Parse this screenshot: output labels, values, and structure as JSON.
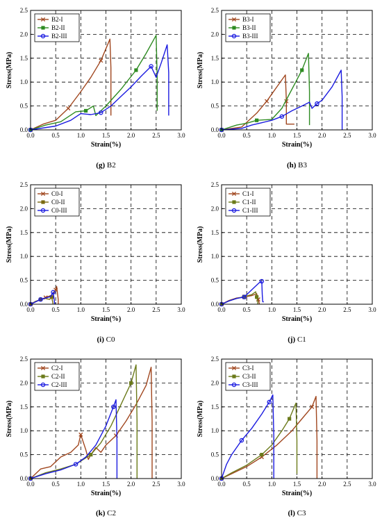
{
  "chart_data": [
    {
      "type": "line",
      "caption_letter": "(g)",
      "caption_name": "B2",
      "xlabel": "Strain(%)",
      "ylabel": "Stress(MPa)",
      "xlim": [
        0,
        3
      ],
      "ylim": [
        0,
        2.5
      ],
      "xticks": [
        "0.0",
        "0.5",
        "1.0",
        "1.5",
        "2.0",
        "2.5",
        "3.0"
      ],
      "yticks": [
        "0.0",
        "0.5",
        "1.0",
        "1.5",
        "2.0",
        "2.5"
      ],
      "grid": "dashed",
      "legend": "top-left",
      "series": [
        {
          "name": "B2-I",
          "color": "#a0461e",
          "marker": "x",
          "x": [
            0,
            0.25,
            0.5,
            0.75,
            1.0,
            1.2,
            1.4,
            1.58,
            1.6,
            1.6
          ],
          "y": [
            0,
            0.12,
            0.2,
            0.45,
            0.8,
            1.1,
            1.45,
            1.9,
            1.3,
            0.3
          ]
        },
        {
          "name": "B2-II",
          "color": "#2e8b22",
          "marker": "s",
          "x": [
            0,
            0.3,
            0.6,
            0.9,
            1.1,
            1.25,
            1.3,
            1.5,
            1.8,
            2.1,
            2.3,
            2.5,
            2.52,
            2.52
          ],
          "y": [
            0,
            0.1,
            0.17,
            0.38,
            0.4,
            0.5,
            0.3,
            0.5,
            0.85,
            1.25,
            1.6,
            1.98,
            1.1,
            0.4
          ]
        },
        {
          "name": "B2-III",
          "color": "#1a1ae0",
          "marker": "o",
          "x": [
            0,
            0.5,
            0.8,
            1.0,
            1.2,
            1.4,
            1.6,
            1.8,
            2.0,
            2.2,
            2.4,
            2.5,
            2.6,
            2.72,
            2.75,
            2.75
          ],
          "y": [
            0,
            0.08,
            0.2,
            0.34,
            0.32,
            0.36,
            0.5,
            0.7,
            0.9,
            1.12,
            1.33,
            1.1,
            1.4,
            1.78,
            1.2,
            0.3
          ]
        }
      ]
    },
    {
      "type": "line",
      "caption_letter": "(h)",
      "caption_name": "B3",
      "xlabel": "Strain(%)",
      "ylabel": "Stress(MPa)",
      "xlim": [
        0,
        3
      ],
      "ylim": [
        0,
        2.5
      ],
      "xticks": [
        "0.0",
        "0.5",
        "1.0",
        "1.5",
        "2.0",
        "2.5",
        "3.0"
      ],
      "yticks": [
        "0.0",
        "0.5",
        "1.0",
        "1.5",
        "2.0",
        "2.5"
      ],
      "grid": "dashed",
      "legend": "top-left",
      "series": [
        {
          "name": "B3-I",
          "color": "#a0461e",
          "marker": "x",
          "x": [
            0,
            0.4,
            0.7,
            0.9,
            1.1,
            1.27,
            1.29,
            1.29,
            1.3,
            1.45
          ],
          "y": [
            0,
            0.06,
            0.35,
            0.6,
            0.9,
            1.15,
            0.6,
            0.12,
            0.12,
            0.12
          ]
        },
        {
          "name": "B3-II",
          "color": "#2e8b22",
          "marker": "s",
          "x": [
            0,
            0.3,
            0.5,
            0.7,
            1.0,
            1.2,
            1.4,
            1.6,
            1.73,
            1.75,
            1.75
          ],
          "y": [
            0,
            0.1,
            0.14,
            0.2,
            0.22,
            0.45,
            0.85,
            1.25,
            1.6,
            0.8,
            0.1
          ]
        },
        {
          "name": "B3-III",
          "color": "#1a1ae0",
          "marker": "o",
          "x": [
            0,
            0.4,
            0.6,
            0.8,
            1.0,
            1.2,
            1.4,
            1.6,
            1.75,
            1.8,
            1.9,
            2.0,
            2.2,
            2.38,
            2.4,
            2.4
          ],
          "y": [
            0,
            0.03,
            0.1,
            0.15,
            0.2,
            0.28,
            0.4,
            0.5,
            0.58,
            0.45,
            0.55,
            0.62,
            0.9,
            1.25,
            0.7,
            0
          ]
        }
      ]
    },
    {
      "type": "line",
      "caption_letter": "(i)",
      "caption_name": "C0",
      "xlabel": "Strain(%)",
      "ylabel": "Stress(MPa)",
      "xlim": [
        0,
        3
      ],
      "ylim": [
        0,
        2.5
      ],
      "xticks": [
        "0.0",
        "0.5",
        "1.0",
        "1.5",
        "2.0",
        "2.5",
        "3.0"
      ],
      "yticks": [
        "0.0",
        "0.5",
        "1.0",
        "1.5",
        "2.0",
        "2.5"
      ],
      "grid": "dashed",
      "legend": "top-left",
      "series": [
        {
          "name": "C0-I",
          "color": "#a0461e",
          "marker": "x",
          "x": [
            0,
            0.1,
            0.2,
            0.3,
            0.4,
            0.45,
            0.5,
            0.52,
            0.55,
            0.55
          ],
          "y": [
            0,
            0.05,
            0.1,
            0.14,
            0.18,
            0.22,
            0.3,
            0.37,
            0.1,
            0
          ]
        },
        {
          "name": "C0-II",
          "color": "#7a6a10",
          "marker": "s",
          "x": [
            0,
            0.1,
            0.2,
            0.3,
            0.38,
            0.42,
            0.44,
            0.45
          ],
          "y": [
            0,
            0.06,
            0.1,
            0.12,
            0.1,
            0.15,
            0.05,
            0
          ]
        },
        {
          "name": "C0-III",
          "color": "#1a1ae0",
          "marker": "o",
          "x": [
            0,
            0.1,
            0.2,
            0.3,
            0.4,
            0.45,
            0.47,
            0.48
          ],
          "y": [
            0,
            0.05,
            0.1,
            0.13,
            0.16,
            0.25,
            0.1,
            0
          ]
        }
      ]
    },
    {
      "type": "line",
      "caption_letter": "(j)",
      "caption_name": "C1",
      "xlabel": "Strain(%)",
      "ylabel": "Stress(MPa)",
      "xlim": [
        0,
        3
      ],
      "ylim": [
        0,
        2.5
      ],
      "xticks": [
        "0.0",
        "0.5",
        "1.0",
        "1.5",
        "2.0",
        "2.5",
        "3.0"
      ],
      "yticks": [
        "0.0",
        "0.5",
        "1.0",
        "1.5",
        "2.0",
        "2.5"
      ],
      "grid": "dashed",
      "legend": "top-left",
      "series": [
        {
          "name": "C1-I",
          "color": "#a0461e",
          "marker": "x",
          "x": [
            0,
            0.15,
            0.3,
            0.45,
            0.6,
            0.7,
            0.73,
            0.75,
            0.75
          ],
          "y": [
            0,
            0.08,
            0.13,
            0.15,
            0.18,
            0.22,
            0.1,
            0.02,
            0
          ]
        },
        {
          "name": "C1-II",
          "color": "#6b7a1a",
          "marker": "s",
          "x": [
            0,
            0.15,
            0.3,
            0.45,
            0.6,
            0.68,
            0.7,
            0.72,
            0.72
          ],
          "y": [
            0,
            0.07,
            0.12,
            0.16,
            0.2,
            0.26,
            0.15,
            0.05,
            0
          ]
        },
        {
          "name": "C1-III",
          "color": "#1a1ae0",
          "marker": "o",
          "x": [
            0,
            0.15,
            0.3,
            0.45,
            0.55,
            0.65,
            0.75,
            0.8,
            0.81,
            0.82,
            0.84
          ],
          "y": [
            0,
            0.07,
            0.12,
            0.15,
            0.25,
            0.35,
            0.45,
            0.48,
            0.2,
            0.05,
            0.05
          ]
        }
      ]
    },
    {
      "type": "line",
      "caption_letter": "(k)",
      "caption_name": "C2",
      "xlabel": "Strain(%)",
      "ylabel": "Stress(MPa)",
      "xlim": [
        0,
        3
      ],
      "ylim": [
        0,
        2.5
      ],
      "xticks": [
        "0.0",
        "0.5",
        "1.0",
        "1.5",
        "2.0",
        "2.5",
        "3.0"
      ],
      "yticks": [
        "0.0",
        "0.5",
        "1.0",
        "1.5",
        "2.0",
        "2.5"
      ],
      "grid": "dashed",
      "legend": "top-left",
      "series": [
        {
          "name": "C2-I",
          "color": "#a0461e",
          "marker": "x",
          "x": [
            0,
            0.2,
            0.4,
            0.6,
            0.8,
            0.95,
            1.0,
            1.1,
            1.15,
            1.2,
            1.3,
            1.4,
            1.5,
            1.7,
            1.9,
            2.1,
            2.3,
            2.4,
            2.42,
            2.42
          ],
          "y": [
            0,
            0.2,
            0.25,
            0.45,
            0.55,
            0.7,
            0.92,
            0.6,
            0.4,
            0.5,
            0.65,
            0.55,
            0.7,
            0.9,
            1.2,
            1.55,
            1.95,
            2.33,
            1.2,
            0
          ]
        },
        {
          "name": "C2-II",
          "color": "#6b7a1a",
          "marker": "s",
          "x": [
            0,
            0.3,
            0.6,
            0.9,
            1.2,
            1.4,
            1.6,
            1.8,
            2.0,
            2.1,
            2.12,
            2.12
          ],
          "y": [
            0,
            0.12,
            0.2,
            0.3,
            0.5,
            0.75,
            1.1,
            1.55,
            2.0,
            2.38,
            1.2,
            0
          ]
        },
        {
          "name": "C2-III",
          "color": "#1a1ae0",
          "marker": "o",
          "x": [
            0,
            0.3,
            0.6,
            0.9,
            1.1,
            1.3,
            1.5,
            1.65,
            1.7,
            1.72,
            1.72
          ],
          "y": [
            0,
            0.1,
            0.18,
            0.3,
            0.45,
            0.7,
            1.1,
            1.5,
            1.65,
            0.8,
            0
          ]
        }
      ]
    },
    {
      "type": "line",
      "caption_letter": "(l)",
      "caption_name": "C3",
      "xlabel": "Strain(%)",
      "ylabel": "Stress(MPa)",
      "xlim": [
        0,
        3
      ],
      "ylim": [
        0,
        2.5
      ],
      "xticks": [
        "0.0",
        "0.5",
        "1.0",
        "1.5",
        "2.0",
        "2.5",
        "3.0"
      ],
      "yticks": [
        "0.0",
        "0.5",
        "1.0",
        "1.5",
        "2.0",
        "2.5"
      ],
      "grid": "dashed",
      "legend": "top-left",
      "series": [
        {
          "name": "C3-I",
          "color": "#a0461e",
          "marker": "x",
          "x": [
            0,
            0.2,
            0.5,
            0.8,
            1.1,
            1.4,
            1.6,
            1.8,
            1.88,
            1.9,
            1.9
          ],
          "y": [
            0,
            0.1,
            0.25,
            0.45,
            0.7,
            1.0,
            1.25,
            1.5,
            1.72,
            0.8,
            0
          ]
        },
        {
          "name": "C3-II",
          "color": "#6b7a1a",
          "marker": "s",
          "x": [
            0,
            0.2,
            0.5,
            0.8,
            1.0,
            1.2,
            1.35,
            1.48,
            1.5,
            1.5
          ],
          "y": [
            0,
            0.12,
            0.28,
            0.5,
            0.7,
            1.0,
            1.25,
            1.58,
            0.8,
            0.1
          ]
        },
        {
          "name": "C3-III",
          "color": "#1a1ae0",
          "marker": "o",
          "x": [
            0,
            0.1,
            0.2,
            0.4,
            0.6,
            0.8,
            0.95,
            1.02,
            1.04,
            1.04
          ],
          "y": [
            0,
            0.3,
            0.5,
            0.8,
            1.05,
            1.35,
            1.6,
            1.75,
            0.9,
            0
          ]
        }
      ]
    }
  ]
}
